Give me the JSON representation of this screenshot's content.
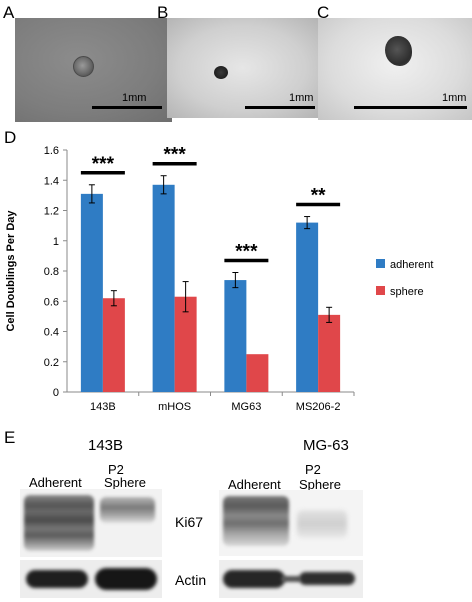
{
  "panels": {
    "a": "A",
    "b": "B",
    "c": "C",
    "d": "D",
    "e": "E"
  },
  "micrographs": [
    {
      "scale_label": "1mm"
    },
    {
      "scale_label": "1mm"
    },
    {
      "scale_label": "1mm"
    }
  ],
  "chart_data": {
    "type": "bar",
    "categories": [
      "143B",
      "mHOS",
      "MG63",
      "MS206-2"
    ],
    "series": [
      {
        "name": "adherent",
        "color": "#2f7cc4",
        "values": [
          1.31,
          1.37,
          0.74,
          1.12
        ],
        "errors": [
          0.06,
          0.06,
          0.05,
          0.04
        ]
      },
      {
        "name": "sphere",
        "color": "#e0474a",
        "values": [
          0.62,
          0.63,
          0.25,
          0.51
        ],
        "errors": [
          0.05,
          0.1,
          0,
          0.05
        ]
      }
    ],
    "significance": [
      "***",
      "***",
      "***",
      "**"
    ],
    "ylabel": "Cell Doublings Per Day",
    "ylim": [
      0,
      1.6
    ],
    "yticks": [
      "0",
      "0.2",
      "0.4",
      "0.6",
      "0.8",
      "1",
      "1.2",
      "1.4",
      "1.6"
    ],
    "legend_position": "right",
    "grid": false
  },
  "blots": {
    "left": {
      "title": "143B",
      "lane1": "Adherent",
      "lane2_line1": "P2",
      "lane2_line2": "Sphere"
    },
    "right": {
      "title": "MG-63",
      "lane1": "Adherent",
      "lane2_line1": "P2",
      "lane2_line2": "Sphere"
    },
    "marker1": "Ki67",
    "marker2": "Actin"
  }
}
